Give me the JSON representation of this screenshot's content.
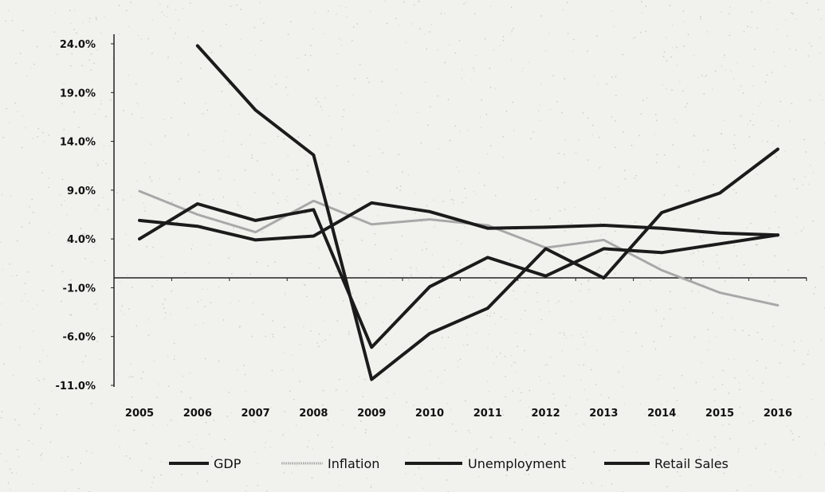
{
  "chart_data": {
    "type": "line",
    "title": "",
    "xlabel": "",
    "ylabel": "",
    "x": [
      "2005",
      "2006",
      "2007",
      "2008",
      "2009",
      "2010",
      "2011",
      "2012",
      "2013",
      "2014",
      "2015",
      "2016"
    ],
    "yticks": [
      "24.0%",
      "19.0%",
      "14.0%",
      "9.0%",
      "4.0%",
      "-1.0%",
      "-6.0%",
      "-11.0%"
    ],
    "ytick_values": [
      24,
      19,
      14,
      9,
      4,
      -1,
      -6,
      -11
    ],
    "ylim": [
      -11,
      24
    ],
    "grid": false,
    "legend_position": "bottom",
    "series": [
      {
        "name": "GDP",
        "color": "#1b1b1b",
        "style": "solid",
        "values": [
          5.9,
          5.3,
          3.9,
          4.3,
          7.7,
          6.8,
          5.1,
          5.2,
          5.4,
          5.1,
          4.6,
          4.4
        ]
      },
      {
        "name": "Inflation",
        "color": "#a8a8a8",
        "style": "light",
        "values": [
          8.9,
          6.5,
          4.7,
          7.9,
          5.5,
          6.0,
          5.4,
          3.1,
          3.9,
          0.8,
          -1.5,
          -2.8
        ]
      },
      {
        "name": "Unemployment",
        "color": "#1b1b1b",
        "style": "solid",
        "values": [
          4.0,
          7.6,
          5.9,
          7.0,
          -7.1,
          -0.9,
          2.1,
          0.2,
          3.0,
          2.6,
          3.5,
          4.4
        ]
      },
      {
        "name": "Retail Sales",
        "color": "#1b1b1b",
        "style": "solid",
        "values": [
          null,
          23.8,
          17.2,
          12.6,
          -10.4,
          -5.7,
          -3.1,
          3.0,
          0.0,
          6.7,
          8.7,
          13.2
        ]
      }
    ]
  }
}
